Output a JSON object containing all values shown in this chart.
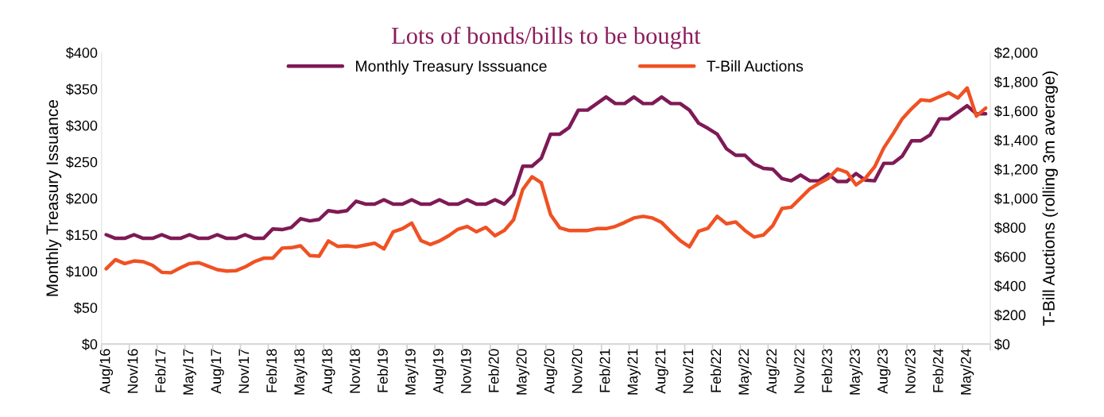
{
  "chart_data": {
    "type": "line",
    "title": "Lots of bonds/bills to be bought",
    "ylabel": "Monthly Treasury Issuance",
    "y2label": "T-Bill Auctions (rolling 3m average)",
    "categories": [
      "Aug/16",
      null,
      null,
      "Nov/16",
      null,
      null,
      "Feb/17",
      null,
      null,
      "May/17",
      null,
      null,
      "Aug/17",
      null,
      null,
      "Nov/17",
      null,
      null,
      "Feb/18",
      null,
      null,
      "May/18",
      null,
      null,
      "Aug/18",
      null,
      null,
      "Nov/18",
      null,
      null,
      "Feb/19",
      null,
      null,
      "May/19",
      null,
      null,
      "Aug/19",
      null,
      null,
      "Nov/19",
      null,
      null,
      "Feb/20",
      null,
      null,
      "May/20",
      null,
      null,
      "Aug/20",
      null,
      null,
      "Nov/20",
      null,
      null,
      "Feb/21",
      null,
      null,
      "May/21",
      null,
      null,
      "Aug/21",
      null,
      null,
      "Nov/21",
      null,
      null,
      "Feb/22",
      null,
      null,
      "May/22",
      null,
      null,
      "Aug/22",
      null,
      null,
      "Nov/22",
      null,
      null,
      "Feb/23",
      null,
      null,
      "May/23",
      null,
      null,
      "Aug/23",
      null,
      null,
      "Nov/23",
      null,
      null,
      "Feb/24",
      null,
      null,
      "May/24",
      null,
      null
    ],
    "series": [
      {
        "name": "Monthly Treasury Isssuance",
        "color": "#7e1a56",
        "values": [
          150,
          145,
          145,
          150,
          145,
          145,
          150,
          145,
          145,
          150,
          145,
          145,
          150,
          145,
          145,
          150,
          145,
          145,
          158,
          157,
          160,
          172,
          169,
          171,
          183,
          181,
          183,
          196,
          192,
          192,
          198,
          192,
          192,
          198,
          192,
          192,
          198,
          192,
          192,
          198,
          192,
          192,
          198,
          192,
          205,
          244,
          244,
          255,
          288,
          288,
          297,
          321,
          321,
          330,
          339,
          330,
          330,
          339,
          330,
          330,
          339,
          330,
          330,
          321,
          303,
          296,
          288,
          268,
          259,
          259,
          247,
          241,
          240,
          227,
          224,
          232,
          224,
          224,
          233,
          223,
          223,
          234,
          225,
          224,
          248,
          248,
          258,
          279,
          279,
          287,
          309,
          309,
          318,
          327,
          316,
          316
        ]
      },
      {
        "name": "T-Bill Auctions",
        "color": "#f05123",
        "axis": "y2",
        "values": [
          516,
          579,
          552,
          570,
          565,
          540,
          492,
          489,
          522,
          552,
          558,
          534,
          510,
          501,
          503,
          529,
          565,
          589,
          589,
          658,
          661,
          674,
          607,
          603,
          707,
          670,
          674,
          667,
          679,
          692,
          652,
          770,
          792,
          830,
          710,
          683,
          707,
          743,
          788,
          807,
          770,
          801,
          743,
          779,
          852,
          1061,
          1148,
          1106,
          888,
          797,
          779,
          779,
          779,
          792,
          792,
          807,
          834,
          865,
          876,
          865,
          834,
          770,
          710,
          667,
          774,
          794,
          876,
          825,
          838,
          779,
          734,
          748,
          812,
          930,
          939,
          1001,
          1064,
          1103,
          1137,
          1201,
          1179,
          1092,
          1137,
          1215,
          1346,
          1443,
          1546,
          1615,
          1675,
          1669,
          1697,
          1724,
          1688,
          1757,
          1564,
          1619
        ]
      }
    ],
    "ylim": [
      0,
      400
    ],
    "yticks": [
      {
        "value": 0,
        "label": "$0"
      },
      {
        "value": 50,
        "label": "$50"
      },
      {
        "value": 100,
        "label": "$100"
      },
      {
        "value": 150,
        "label": "$150"
      },
      {
        "value": 200,
        "label": "$200"
      },
      {
        "value": 250,
        "label": "$250"
      },
      {
        "value": 300,
        "label": "$300"
      },
      {
        "value": 350,
        "label": "$350"
      },
      {
        "value": 400,
        "label": "$400"
      }
    ],
    "y2lim": [
      0,
      2000
    ],
    "y2ticks": [
      {
        "value": 0,
        "label": "$0"
      },
      {
        "value": 200,
        "label": "$200"
      },
      {
        "value": 400,
        "label": "$400"
      },
      {
        "value": 600,
        "label": "$600"
      },
      {
        "value": 800,
        "label": "$800"
      },
      {
        "value": 1000,
        "label": "$1,000"
      },
      {
        "value": 1200,
        "label": "$1,200"
      },
      {
        "value": 1400,
        "label": "$1,400"
      },
      {
        "value": 1600,
        "label": "$1,600"
      },
      {
        "value": 1800,
        "label": "$1,800"
      },
      {
        "value": 2000,
        "label": "$2,000"
      }
    ],
    "legend": "top",
    "grid": false
  }
}
